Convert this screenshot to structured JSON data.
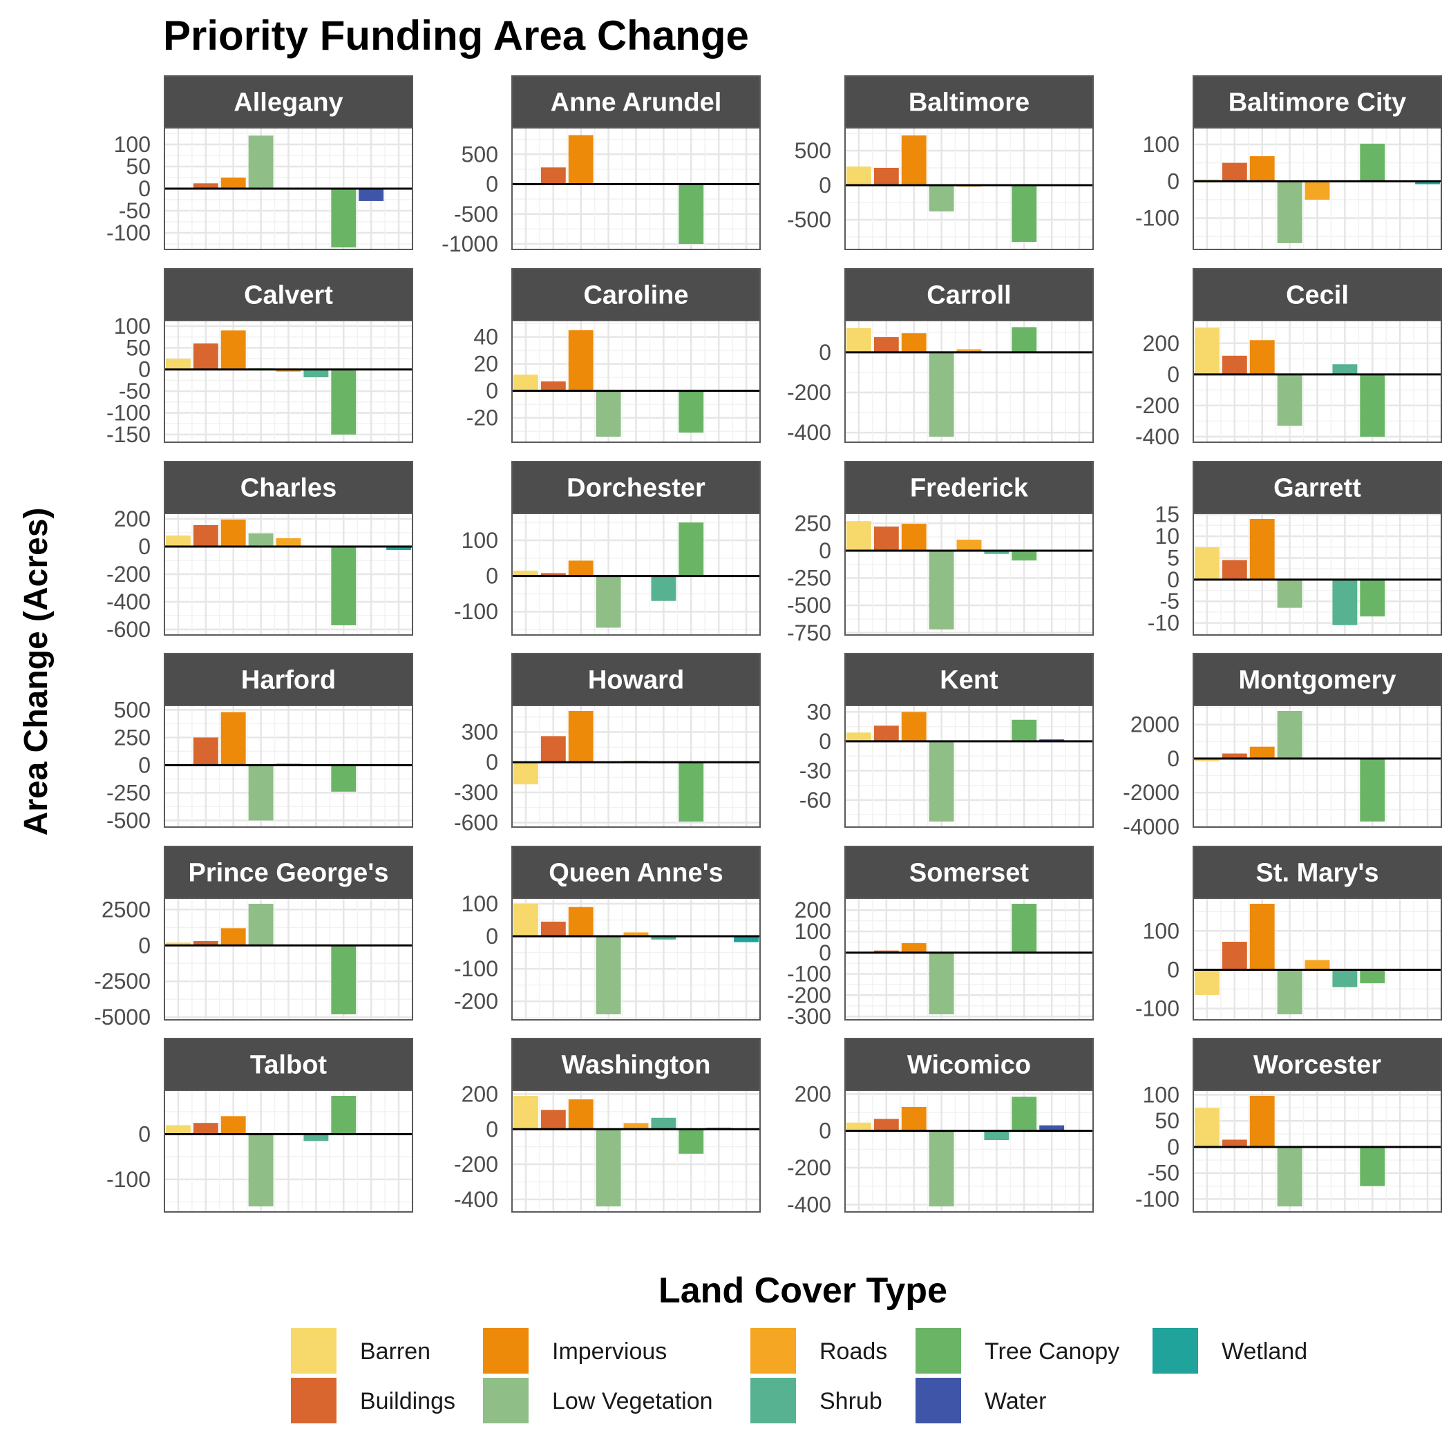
{
  "chart_data": {
    "type": "bar",
    "title": "Priority Funding Area Change",
    "ylabel": "Area Change (Acres)",
    "legend": {
      "title": "Land Cover Type",
      "position": "bottom",
      "items": [
        "Barren",
        "Buildings",
        "Impervious",
        "Low Vegetation",
        "Roads",
        "Shrub",
        "Tree Canopy",
        "Water",
        "Wetland"
      ]
    },
    "categories": [
      "Barren",
      "Buildings",
      "Impervious",
      "Low Vegetation",
      "Roads",
      "Shrub",
      "Tree Canopy",
      "Water",
      "Wetland"
    ],
    "colors": {
      "Barren": "#F7D96B",
      "Buildings": "#D9662E",
      "Impervious": "#EE8A0A",
      "Low Vegetation": "#8FBE86",
      "Roads": "#F5A623",
      "Shrub": "#56B290",
      "Tree Canopy": "#6AB565",
      "Water": "#3F56A8",
      "Wetland": "#1FA39A"
    },
    "grid": true,
    "panels": [
      {
        "name": "Allegany",
        "ylim": [
          -125,
          125
        ],
        "yticks": [
          100,
          50,
          0,
          -50,
          -100
        ],
        "ytick_labels": [
          "100",
          "50",
          "0",
          "-50",
          "-100"
        ],
        "values": [
          0,
          12,
          25,
          120,
          0,
          0,
          -133,
          -28,
          0
        ]
      },
      {
        "name": "Anne Arundel",
        "ylim": [
          -1000,
          850
        ],
        "yticks": [
          500,
          0,
          -500,
          -1000
        ],
        "ytick_labels": [
          "500",
          "0",
          "-500",
          "-1000"
        ],
        "values": [
          -20,
          280,
          820,
          -10,
          -10,
          0,
          -1000,
          0,
          0
        ]
      },
      {
        "name": "Baltimore",
        "ylim": [
          -850,
          750
        ],
        "yticks": [
          500,
          0,
          -500
        ],
        "ytick_labels": [
          "500",
          "0",
          "-500"
        ],
        "values": [
          270,
          250,
          720,
          -380,
          -20,
          0,
          -820,
          0,
          0
        ]
      },
      {
        "name": "Baltimore City",
        "ylim": [
          -170,
          130
        ],
        "yticks": [
          100,
          0,
          -100
        ],
        "ytick_labels": [
          "100",
          "0",
          "-100"
        ],
        "values": [
          5,
          50,
          68,
          -168,
          -50,
          0,
          102,
          0,
          -8
        ]
      },
      {
        "name": "Calvert",
        "ylim": [
          -155,
          100
        ],
        "yticks": [
          100,
          50,
          0,
          -50,
          -100,
          -150
        ],
        "ytick_labels": [
          "100",
          "50",
          "0",
          "-50",
          "-100",
          "-150"
        ],
        "values": [
          25,
          60,
          90,
          3,
          -5,
          -18,
          -150,
          0,
          0
        ]
      },
      {
        "name": "Caroline",
        "ylim": [
          -34,
          48
        ],
        "yticks": [
          40,
          20,
          0,
          -20
        ],
        "ytick_labels": [
          "40",
          "20",
          "0",
          "-20"
        ],
        "values": [
          12,
          7,
          45,
          -34,
          0,
          0,
          -31,
          0,
          0
        ]
      },
      {
        "name": "Carroll",
        "ylim": [
          -420,
          130
        ],
        "yticks": [
          0,
          -200,
          -400
        ],
        "ytick_labels": [
          "0",
          "-200",
          "-400"
        ],
        "values": [
          120,
          75,
          95,
          -420,
          15,
          0,
          125,
          0,
          0
        ]
      },
      {
        "name": "Cecil",
        "ylim": [
          -400,
          310
        ],
        "yticks": [
          200,
          0,
          -200,
          -400
        ],
        "ytick_labels": [
          "200",
          "0",
          "-200",
          "-400"
        ],
        "values": [
          300,
          120,
          220,
          -330,
          0,
          65,
          -400,
          0,
          0
        ]
      },
      {
        "name": "Charles",
        "ylim": [
          -600,
          200
        ],
        "yticks": [
          200,
          0,
          -200,
          -400,
          -600
        ],
        "ytick_labels": [
          "200",
          "0",
          "-200",
          "-400",
          "-600"
        ],
        "values": [
          80,
          155,
          195,
          95,
          60,
          -5,
          -570,
          0,
          -25
        ]
      },
      {
        "name": "Dorchester",
        "ylim": [
          -150,
          160
        ],
        "yticks": [
          100,
          0,
          -100
        ],
        "ytick_labels": [
          "100",
          "0",
          "-100"
        ],
        "values": [
          15,
          8,
          43,
          -145,
          0,
          -70,
          150,
          0,
          0
        ]
      },
      {
        "name": "Frederick",
        "ylim": [
          -720,
          290
        ],
        "yticks": [
          250,
          0,
          -250,
          -500,
          -750
        ],
        "ytick_labels": [
          "250",
          "0",
          "-250",
          "-500",
          "-750"
        ],
        "values": [
          270,
          220,
          245,
          -720,
          100,
          -30,
          -90,
          0,
          0
        ]
      },
      {
        "name": "Garrett",
        "ylim": [
          -11.5,
          14
        ],
        "yticks": [
          15,
          10,
          5,
          0,
          -5,
          -10
        ],
        "ytick_labels": [
          "15",
          "10",
          "5",
          "0",
          "-5",
          "-10"
        ],
        "values": [
          7.5,
          4.5,
          14,
          -6.5,
          0,
          -10.5,
          -8.5,
          0,
          0
        ]
      },
      {
        "name": "Harford",
        "ylim": [
          -510,
          490
        ],
        "yticks": [
          500,
          250,
          0,
          -250,
          -500
        ],
        "ytick_labels": [
          "500",
          "250",
          "0",
          "-250",
          "-500"
        ],
        "values": [
          0,
          250,
          480,
          -500,
          15,
          0,
          -240,
          0,
          0
        ]
      },
      {
        "name": "Howard",
        "ylim": [
          -590,
          510
        ],
        "yticks": [
          300,
          0,
          -300,
          -600
        ],
        "ytick_labels": [
          "300",
          "0",
          "-300",
          "-600"
        ],
        "values": [
          -220,
          260,
          510,
          0,
          15,
          0,
          -590,
          0,
          0
        ]
      },
      {
        "name": "Kent",
        "ylim": [
          -82,
          31
        ],
        "yticks": [
          30,
          0,
          -30,
          -60
        ],
        "ytick_labels": [
          "30",
          "0",
          "-30",
          "-60"
        ],
        "values": [
          9,
          16,
          30,
          -82,
          0,
          0,
          22,
          2,
          0
        ]
      },
      {
        "name": "Montgomery",
        "ylim": [
          -3700,
          2800
        ],
        "yticks": [
          2000,
          0,
          -2000,
          -4000
        ],
        "ytick_labels": [
          "2000",
          "0",
          "-2000",
          "-4000"
        ],
        "values": [
          -150,
          300,
          700,
          2800,
          0,
          0,
          -3700,
          0,
          0
        ]
      },
      {
        "name": "Prince George's",
        "ylim": [
          -4800,
          2900
        ],
        "yticks": [
          2500,
          0,
          -2500,
          -5000
        ],
        "ytick_labels": [
          "2500",
          "0",
          "-2500",
          "-5000"
        ],
        "values": [
          200,
          300,
          1200,
          2900,
          0,
          0,
          -4800,
          0,
          0
        ]
      },
      {
        "name": "Queen Anne's",
        "ylim": [
          -240,
          100
        ],
        "yticks": [
          100,
          0,
          -100,
          -200
        ],
        "ytick_labels": [
          "100",
          "0",
          "-100",
          "-200"
        ],
        "values": [
          100,
          45,
          90,
          -240,
          12,
          -10,
          0,
          0,
          -18
        ]
      },
      {
        "name": "Somerset",
        "ylim": [
          -290,
          230
        ],
        "yticks": [
          200,
          100,
          0,
          -100,
          -200,
          -300
        ],
        "ytick_labels": [
          "200",
          "100",
          "0",
          "-100",
          "-200",
          "-300"
        ],
        "values": [
          0,
          10,
          45,
          -290,
          0,
          0,
          230,
          0,
          0
        ]
      },
      {
        "name": "St. Mary's",
        "ylim": [
          -115,
          170
        ],
        "yticks": [
          100,
          0,
          -100
        ],
        "ytick_labels": [
          "100",
          "0",
          "-100"
        ],
        "values": [
          -65,
          72,
          170,
          -115,
          25,
          -45,
          -35,
          0,
          0
        ]
      },
      {
        "name": "Talbot",
        "ylim": [
          -160,
          85
        ],
        "yticks": [
          0,
          -100
        ],
        "ytick_labels": [
          "0",
          "-100"
        ],
        "values": [
          20,
          25,
          40,
          -160,
          0,
          -15,
          85,
          0,
          0
        ]
      },
      {
        "name": "Washington",
        "ylim": [
          -440,
          190
        ],
        "yticks": [
          200,
          0,
          -200,
          -400
        ],
        "ytick_labels": [
          "200",
          "0",
          "-200",
          "-400"
        ],
        "values": [
          190,
          110,
          170,
          -440,
          35,
          65,
          -140,
          8,
          0
        ]
      },
      {
        "name": "Wicomico",
        "ylim": [
          -410,
          190
        ],
        "yticks": [
          200,
          0,
          -200,
          -400
        ],
        "ytick_labels": [
          "200",
          "0",
          "-200",
          "-400"
        ],
        "values": [
          45,
          65,
          130,
          -410,
          0,
          -50,
          185,
          30,
          0
        ]
      },
      {
        "name": "Worcester",
        "ylim": [
          -114,
          98
        ],
        "yticks": [
          100,
          50,
          0,
          -50,
          -100
        ],
        "ytick_labels": [
          "100",
          "50",
          "0",
          "-50",
          "-100"
        ],
        "values": [
          75,
          14,
          98,
          -114,
          0,
          -2,
          -75,
          0,
          0
        ]
      }
    ]
  }
}
